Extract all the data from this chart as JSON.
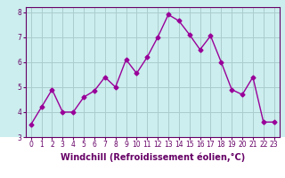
{
  "x": [
    0,
    1,
    2,
    3,
    4,
    5,
    6,
    7,
    8,
    9,
    10,
    11,
    12,
    13,
    14,
    15,
    16,
    17,
    18,
    19,
    20,
    21,
    22,
    23
  ],
  "y": [
    3.5,
    4.2,
    4.9,
    4.0,
    4.0,
    4.6,
    4.85,
    5.4,
    5.0,
    6.1,
    5.55,
    6.2,
    7.0,
    7.9,
    7.65,
    7.1,
    6.5,
    7.05,
    6.0,
    4.9,
    4.7,
    5.4,
    3.6,
    3.6
  ],
  "line_color": "#990099",
  "marker": "D",
  "marker_size": 2.5,
  "bg_color": "#cceeee",
  "bottom_bg": "#ffffff",
  "grid_color": "#aacccc",
  "xlabel": "Windchill (Refroidissement éolien,°C)",
  "ylim": [
    3,
    8.2
  ],
  "xlim": [
    -0.5,
    23.5
  ],
  "yticks": [
    3,
    4,
    5,
    6,
    7,
    8
  ],
  "xticks": [
    0,
    1,
    2,
    3,
    4,
    5,
    6,
    7,
    8,
    9,
    10,
    11,
    12,
    13,
    14,
    15,
    16,
    17,
    18,
    19,
    20,
    21,
    22,
    23
  ],
  "label_color": "#660066",
  "tick_label_fontsize": 5.5,
  "xlabel_fontsize": 7.0,
  "linewidth": 1.0,
  "spine_color": "#660066"
}
